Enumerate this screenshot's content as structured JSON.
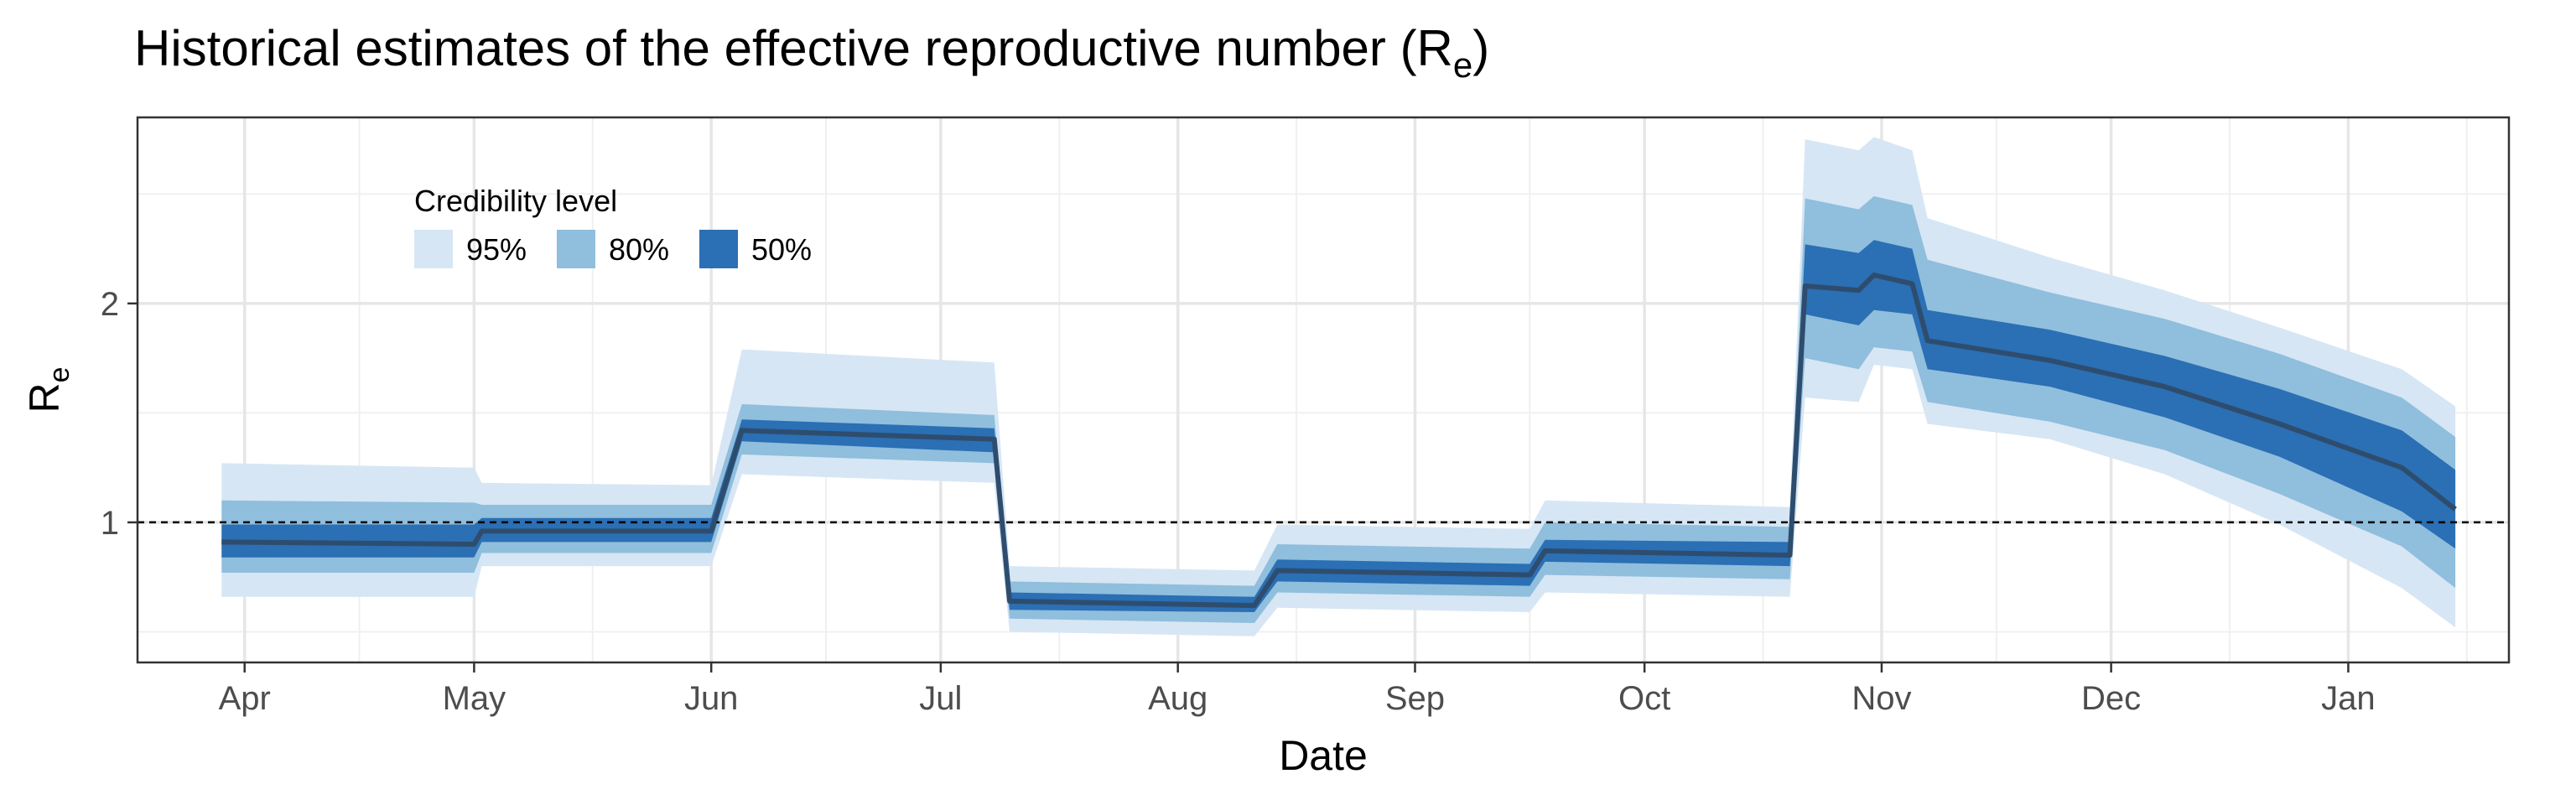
{
  "chart_data": {
    "type": "area",
    "title": "Historical estimates of the effective reproductive number (R",
    "title_subscript": "e",
    "title_suffix": ")",
    "xlabel": "Date",
    "ylabel": "R",
    "ylabel_subscript": "e",
    "xlim": [
      "2020-03-18",
      "2021-01-22"
    ],
    "ylim": [
      0.36,
      2.85
    ],
    "x_ticks": [
      {
        "date": "2020-04-01",
        "label": "Apr"
      },
      {
        "date": "2020-05-01",
        "label": "May"
      },
      {
        "date": "2020-06-01",
        "label": "Jun"
      },
      {
        "date": "2020-07-01",
        "label": "Jul"
      },
      {
        "date": "2020-08-01",
        "label": "Aug"
      },
      {
        "date": "2020-09-01",
        "label": "Sep"
      },
      {
        "date": "2020-10-01",
        "label": "Oct"
      },
      {
        "date": "2020-11-01",
        "label": "Nov"
      },
      {
        "date": "2020-12-01",
        "label": "Dec"
      },
      {
        "date": "2021-01-01",
        "label": "Jan"
      }
    ],
    "y_ticks": [
      1,
      2
    ],
    "y_minor_gridlines": [
      0.5,
      1.5,
      2.5
    ],
    "reference_line": {
      "y": 1,
      "style": "dashed"
    },
    "grid": true,
    "legend": {
      "title": "Credibility level",
      "placement": "top-left",
      "entries": [
        {
          "label": "95%",
          "color": "#d6e6f4"
        },
        {
          "label": "80%",
          "color": "#90bedd"
        },
        {
          "label": "50%",
          "color": "#2b6fb4"
        }
      ]
    },
    "median_color": "#2e4d6e",
    "bands": {
      "x": [
        "2020-03-29",
        "2020-05-01",
        "2020-05-02",
        "2020-06-01",
        "2020-06-05",
        "2020-07-08",
        "2020-07-10",
        "2020-08-11",
        "2020-08-14",
        "2020-09-16",
        "2020-09-18",
        "2020-10-20",
        "2020-10-22",
        "2020-10-29",
        "2020-10-31",
        "2020-11-05",
        "2020-11-07",
        "2020-11-23",
        "2020-12-08",
        "2020-12-23",
        "2021-01-08",
        "2021-01-15"
      ],
      "median": [
        0.91,
        0.9,
        0.96,
        0.96,
        1.42,
        1.38,
        0.64,
        0.62,
        0.78,
        0.76,
        0.87,
        0.85,
        2.08,
        2.06,
        2.13,
        2.09,
        1.83,
        1.74,
        1.62,
        1.45,
        1.25,
        1.06
      ],
      "lo50": [
        0.84,
        0.84,
        0.91,
        0.91,
        1.37,
        1.32,
        0.6,
        0.59,
        0.73,
        0.71,
        0.82,
        0.8,
        1.95,
        1.9,
        1.97,
        1.95,
        1.7,
        1.62,
        1.48,
        1.3,
        1.05,
        0.88
      ],
      "hi50": [
        0.99,
        0.99,
        1.02,
        1.02,
        1.47,
        1.43,
        0.68,
        0.66,
        0.83,
        0.81,
        0.92,
        0.91,
        2.27,
        2.23,
        2.29,
        2.25,
        1.97,
        1.88,
        1.76,
        1.61,
        1.42,
        1.24
      ],
      "lo80": [
        0.77,
        0.77,
        0.86,
        0.86,
        1.31,
        1.27,
        0.56,
        0.54,
        0.68,
        0.66,
        0.76,
        0.74,
        1.75,
        1.7,
        1.8,
        1.78,
        1.55,
        1.46,
        1.33,
        1.13,
        0.89,
        0.7
      ],
      "hi80": [
        1.1,
        1.09,
        1.08,
        1.08,
        1.54,
        1.49,
        0.73,
        0.71,
        0.9,
        0.88,
        1.0,
        0.98,
        2.48,
        2.43,
        2.49,
        2.45,
        2.2,
        2.05,
        1.93,
        1.77,
        1.57,
        1.39
      ],
      "lo95": [
        0.66,
        0.66,
        0.8,
        0.8,
        1.22,
        1.18,
        0.5,
        0.48,
        0.61,
        0.59,
        0.68,
        0.66,
        1.57,
        1.55,
        1.72,
        1.7,
        1.45,
        1.38,
        1.22,
        0.99,
        0.7,
        0.52
      ],
      "hi95": [
        1.27,
        1.25,
        1.18,
        1.17,
        1.79,
        1.73,
        0.8,
        0.78,
        0.99,
        0.97,
        1.1,
        1.07,
        2.75,
        2.7,
        2.76,
        2.7,
        2.39,
        2.21,
        2.06,
        1.89,
        1.7,
        1.53
      ]
    }
  }
}
